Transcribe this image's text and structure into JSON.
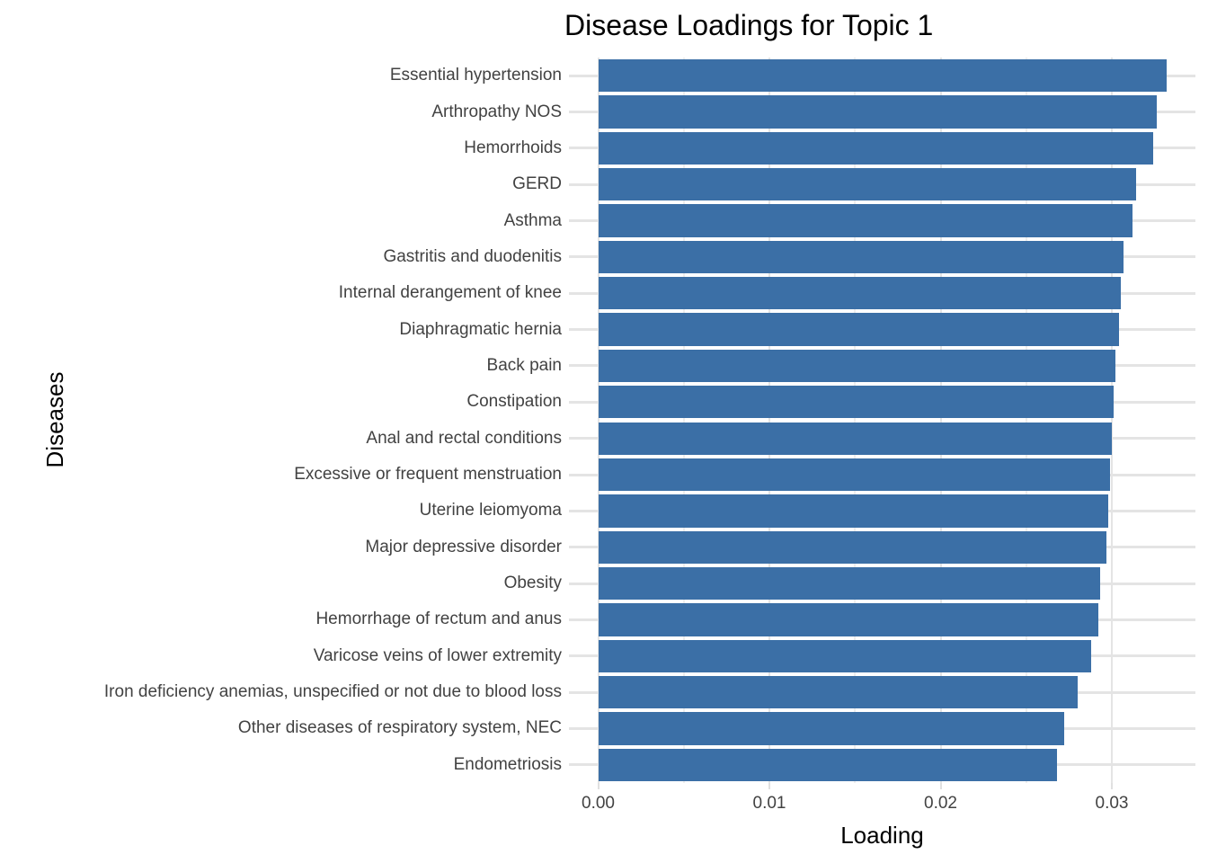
{
  "chart_data": {
    "type": "bar",
    "orientation": "horizontal",
    "title": "Disease Loadings for Topic 1",
    "xlabel": "Loading",
    "ylabel": "Diseases",
    "categories": [
      "Essential hypertension",
      "Arthropathy NOS",
      "Hemorrhoids",
      "GERD",
      "Asthma",
      "Gastritis and duodenitis",
      "Internal derangement of knee",
      "Diaphragmatic hernia",
      "Back pain",
      "Constipation",
      "Anal and rectal conditions",
      "Excessive or frequent menstruation",
      "Uterine leiomyoma",
      "Major depressive disorder",
      "Obesity",
      "Hemorrhage of rectum and anus",
      "Varicose veins of lower extremity",
      "Iron deficiency anemias, unspecified or not due to blood loss",
      "Other diseases of respiratory system, NEC",
      "Endometriosis"
    ],
    "values": [
      0.0332,
      0.0326,
      0.0324,
      0.0314,
      0.0312,
      0.0307,
      0.0305,
      0.0304,
      0.0302,
      0.0301,
      0.03,
      0.0299,
      0.0298,
      0.0297,
      0.0293,
      0.0292,
      0.0288,
      0.028,
      0.0272,
      0.0268
    ],
    "xlim": [
      -0.00166,
      0.03486
    ],
    "xticks": [
      0.0,
      0.01,
      0.02,
      0.03
    ],
    "xtick_labels": [
      "0.00",
      "0.01",
      "0.02",
      "0.03"
    ],
    "minor_xticks": [
      0.005,
      0.015,
      0.025
    ],
    "grid": "major-and-minor, no panel border",
    "legend": "none",
    "style": {
      "bar_color": "#3B6FA6",
      "background_color": "#FFFFFF",
      "major_gridline_color": "#E4E4E4",
      "minor_gridline_color": "#EEEEEE",
      "tick_mark_color": "#E0E0E0",
      "tick_label_color": "#424242",
      "title_color": "#000000"
    }
  }
}
